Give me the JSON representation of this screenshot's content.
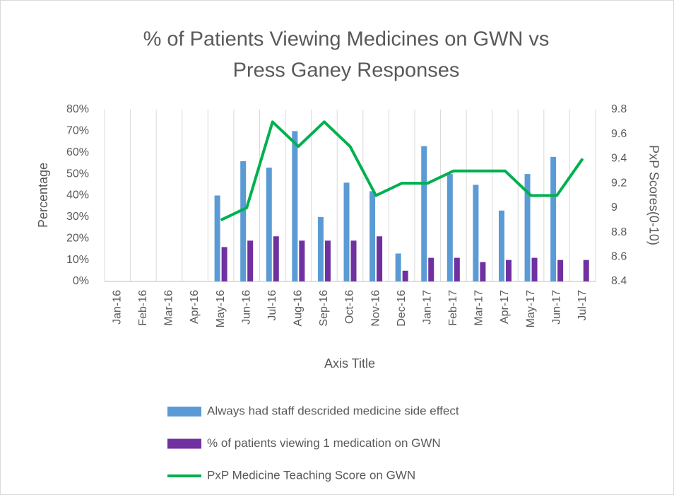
{
  "chart_data": {
    "type": "bar-line",
    "title": [
      "% of Patients Viewing Medicines on GWN vs",
      "Press Ganey Responses"
    ],
    "x_label": "Axis Title",
    "y_label": "Percentage",
    "y2_label": "PxP Scores(0-10)",
    "categories": [
      "Jan-16",
      "Feb-16",
      "Mar-16",
      "Apr-16",
      "May-16",
      "Jun-16",
      "Jul-16",
      "Aug-16",
      "Sep-16",
      "Oct-16",
      "Nov-16",
      "Dec-16",
      "Jan-17",
      "Feb-17",
      "Mar-17",
      "Apr-17",
      "May-17",
      "Jun-17",
      "Jul-17"
    ],
    "series": [
      {
        "name": "Always had staff descrided medicine side effect",
        "color": "#5b9bd5",
        "kind": "bar",
        "values": [
          null,
          null,
          null,
          null,
          40,
          56,
          53,
          70,
          30,
          46,
          42,
          13,
          63,
          50,
          45,
          33,
          50,
          58,
          null
        ]
      },
      {
        "name": "% of patients viewing 1 medication on GWN",
        "color": "#7030a0",
        "kind": "bar",
        "values": [
          null,
          null,
          null,
          null,
          16,
          19,
          21,
          19,
          19,
          19,
          21,
          5,
          11,
          11,
          9,
          10,
          11,
          10,
          10
        ]
      },
      {
        "name": "PxP Medicine Teaching Score on GWN",
        "color": "#00b050",
        "kind": "line",
        "axis": "y2",
        "values": [
          null,
          null,
          null,
          null,
          8.9,
          9.0,
          9.7,
          9.5,
          9.7,
          9.5,
          9.1,
          9.2,
          9.2,
          9.3,
          9.3,
          9.3,
          9.1,
          9.1,
          9.4
        ]
      }
    ],
    "ylim": [
      0,
      80
    ],
    "yticks": [
      {
        "value": 0,
        "label": "0%"
      },
      {
        "value": 10,
        "label": "10%"
      },
      {
        "value": 20,
        "label": "20%"
      },
      {
        "value": 30,
        "label": "30%"
      },
      {
        "value": 40,
        "label": "40%"
      },
      {
        "value": 50,
        "label": "50%"
      },
      {
        "value": 60,
        "label": "60%"
      },
      {
        "value": 70,
        "label": "70%"
      },
      {
        "value": 80,
        "label": "80%"
      }
    ],
    "y2lim": [
      8.4,
      9.8
    ],
    "y2ticks": [
      8.4,
      8.6,
      8.8,
      9,
      9.2,
      9.4,
      9.6,
      9.8
    ],
    "grid": true,
    "legend": "bottom"
  }
}
